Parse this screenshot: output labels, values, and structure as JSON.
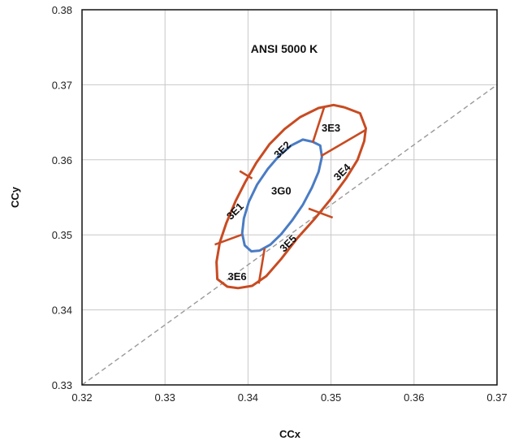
{
  "chart_data": {
    "type": "line",
    "title": "ANSI 5000 K",
    "xlabel": "CCx",
    "ylabel": "CCy",
    "xlim": [
      0.32,
      0.37
    ],
    "ylim": [
      0.33,
      0.38
    ],
    "x_ticks": [
      "0.32",
      "0.33",
      "0.34",
      "0.35",
      "0.36",
      "0.37"
    ],
    "y_ticks": [
      "0.33",
      "0.34",
      "0.35",
      "0.36",
      "0.37",
      "0.38"
    ],
    "grid": true,
    "colors": {
      "outer": "#c84b22",
      "inner": "#4a7cc4",
      "dashed": "#999999",
      "grid": "#c8c8c8"
    },
    "series": [
      {
        "style": "dashed",
        "x": [
          0.32,
          0.37
        ],
        "y": [
          0.33,
          0.37
        ]
      },
      {
        "style": "outer-ellipse",
        "x": [
          0.3516,
          0.3535,
          0.3542,
          0.354,
          0.3532,
          0.3518,
          0.35,
          0.348,
          0.3459,
          0.344,
          0.3422,
          0.3405,
          0.3388,
          0.3375,
          0.3363,
          0.3362,
          0.3366,
          0.3374,
          0.3385,
          0.3397,
          0.341,
          0.3426,
          0.3444,
          0.3463,
          0.3485,
          0.3503,
          0.3516
        ],
        "y": [
          0.367,
          0.3662,
          0.3642,
          0.3625,
          0.36,
          0.3575,
          0.3548,
          0.3521,
          0.3495,
          0.3468,
          0.3445,
          0.3432,
          0.3429,
          0.3431,
          0.3441,
          0.3464,
          0.349,
          0.3516,
          0.3545,
          0.3571,
          0.3596,
          0.3621,
          0.3641,
          0.3657,
          0.3669,
          0.3673,
          0.367
        ]
      },
      {
        "style": "inner-ellipse",
        "x": [
          0.3478,
          0.3487,
          0.3489,
          0.3485,
          0.3477,
          0.3466,
          0.3453,
          0.344,
          0.3427,
          0.3414,
          0.3404,
          0.3396,
          0.3393,
          0.3395,
          0.3401,
          0.3411,
          0.3424,
          0.3438,
          0.3452,
          0.3466,
          0.3478
        ],
        "y": [
          0.3624,
          0.3619,
          0.3604,
          0.3584,
          0.3563,
          0.354,
          0.3519,
          0.3501,
          0.3487,
          0.3479,
          0.3478,
          0.3486,
          0.3502,
          0.3522,
          0.3544,
          0.3567,
          0.3588,
          0.3606,
          0.3619,
          0.3627,
          0.3624
        ]
      }
    ],
    "dividers": [
      {
        "x": [
          0.3488,
          0.3542
        ],
        "y": [
          0.3605,
          0.364
        ]
      },
      {
        "x": [
          0.3478,
          0.3492
        ],
        "y": [
          0.3623,
          0.3671
        ]
      },
      {
        "x": [
          0.339,
          0.3405
        ],
        "y": [
          0.3585,
          0.3575
        ]
      },
      {
        "x": [
          0.336,
          0.3392
        ],
        "y": [
          0.3487,
          0.35
        ]
      },
      {
        "x": [
          0.3413,
          0.342
        ],
        "y": [
          0.3435,
          0.3482
        ]
      },
      {
        "x": [
          0.3473,
          0.3502
        ],
        "y": [
          0.3535,
          0.3523
        ]
      }
    ],
    "annotations": [
      {
        "text": "3E3",
        "x": 0.35,
        "y": 0.3643,
        "rotate": 0
      },
      {
        "text": "3E2",
        "x": 0.3441,
        "y": 0.3614,
        "rotate": -45
      },
      {
        "text": "3E4",
        "x": 0.3513,
        "y": 0.3584,
        "rotate": -45
      },
      {
        "text": "3G0",
        "x": 0.344,
        "y": 0.3559,
        "rotate": 0
      },
      {
        "text": "3E1",
        "x": 0.3384,
        "y": 0.3532,
        "rotate": -45
      },
      {
        "text": "3E5",
        "x": 0.3448,
        "y": 0.3489,
        "rotate": -45
      },
      {
        "text": "3E6",
        "x": 0.3387,
        "y": 0.3445,
        "rotate": 0
      }
    ]
  }
}
